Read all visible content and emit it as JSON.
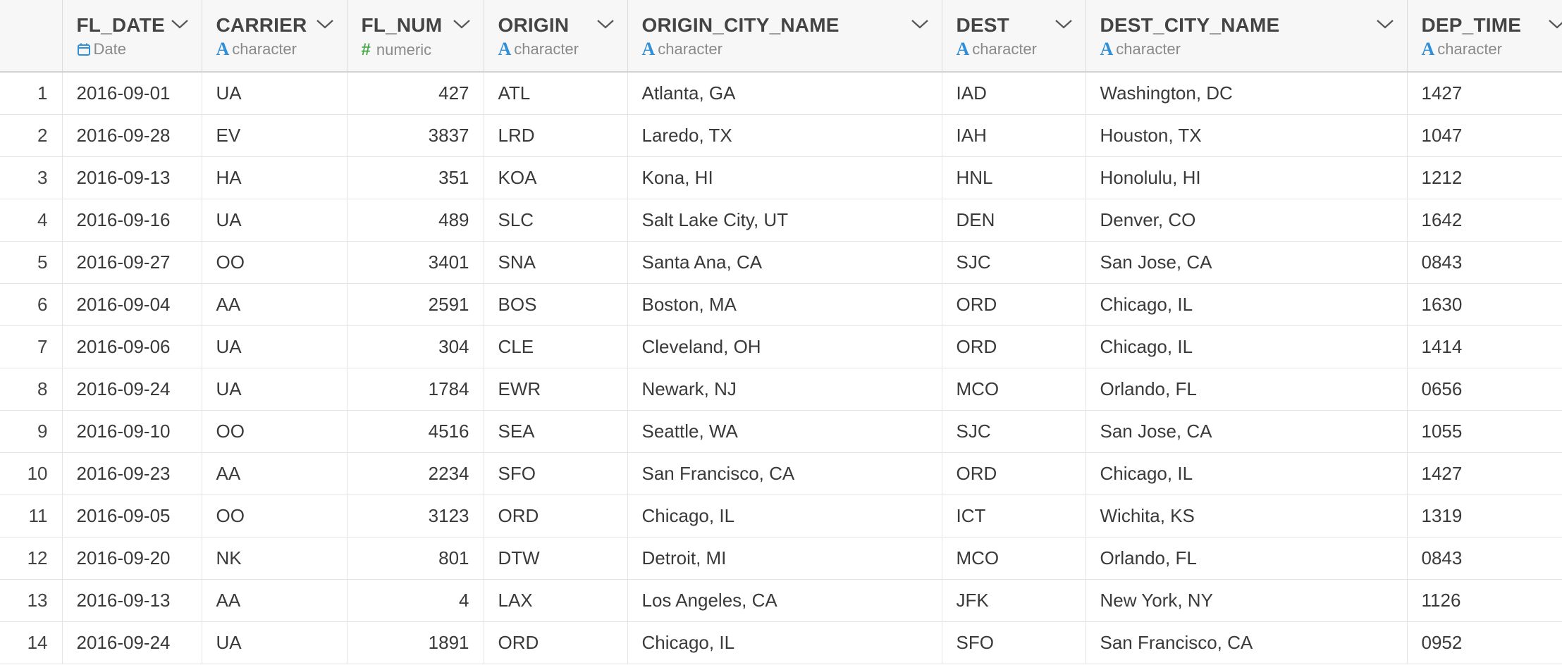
{
  "columns": [
    {
      "name": "FL_DATE",
      "type": "Date",
      "type_icon": "calendar-icon"
    },
    {
      "name": "CARRIER",
      "type": "character",
      "type_icon": "character-type-icon"
    },
    {
      "name": "FL_NUM",
      "type": "numeric",
      "type_icon": "numeric-type-icon"
    },
    {
      "name": "ORIGIN",
      "type": "character",
      "type_icon": "character-type-icon"
    },
    {
      "name": "ORIGIN_CITY_NAME",
      "type": "character",
      "type_icon": "character-type-icon"
    },
    {
      "name": "DEST",
      "type": "character",
      "type_icon": "character-type-icon"
    },
    {
      "name": "DEST_CITY_NAME",
      "type": "character",
      "type_icon": "character-type-icon"
    },
    {
      "name": "DEP_TIME",
      "type": "character",
      "type_icon": "character-type-icon"
    }
  ],
  "type_glyphs": {
    "character": "A",
    "numeric": "#"
  },
  "colors": {
    "character_icon": "#2f8fd8",
    "numeric_icon": "#4aa84a",
    "date_icon": "#2f8fd8"
  },
  "rows": [
    {
      "n": "1",
      "cells": [
        "2016-09-01",
        "UA",
        "427",
        "ATL",
        "Atlanta, GA",
        "IAD",
        "Washington, DC",
        "1427"
      ]
    },
    {
      "n": "2",
      "cells": [
        "2016-09-28",
        "EV",
        "3837",
        "LRD",
        "Laredo, TX",
        "IAH",
        "Houston, TX",
        "1047"
      ]
    },
    {
      "n": "3",
      "cells": [
        "2016-09-13",
        "HA",
        "351",
        "KOA",
        "Kona, HI",
        "HNL",
        "Honolulu, HI",
        "1212"
      ]
    },
    {
      "n": "4",
      "cells": [
        "2016-09-16",
        "UA",
        "489",
        "SLC",
        "Salt Lake City, UT",
        "DEN",
        "Denver, CO",
        "1642"
      ]
    },
    {
      "n": "5",
      "cells": [
        "2016-09-27",
        "OO",
        "3401",
        "SNA",
        "Santa Ana, CA",
        "SJC",
        "San Jose, CA",
        "0843"
      ]
    },
    {
      "n": "6",
      "cells": [
        "2016-09-04",
        "AA",
        "2591",
        "BOS",
        "Boston, MA",
        "ORD",
        "Chicago, IL",
        "1630"
      ]
    },
    {
      "n": "7",
      "cells": [
        "2016-09-06",
        "UA",
        "304",
        "CLE",
        "Cleveland, OH",
        "ORD",
        "Chicago, IL",
        "1414"
      ]
    },
    {
      "n": "8",
      "cells": [
        "2016-09-24",
        "UA",
        "1784",
        "EWR",
        "Newark, NJ",
        "MCO",
        "Orlando, FL",
        "0656"
      ]
    },
    {
      "n": "9",
      "cells": [
        "2016-09-10",
        "OO",
        "4516",
        "SEA",
        "Seattle, WA",
        "SJC",
        "San Jose, CA",
        "1055"
      ]
    },
    {
      "n": "10",
      "cells": [
        "2016-09-23",
        "AA",
        "2234",
        "SFO",
        "San Francisco, CA",
        "ORD",
        "Chicago, IL",
        "1427"
      ]
    },
    {
      "n": "11",
      "cells": [
        "2016-09-05",
        "OO",
        "3123",
        "ORD",
        "Chicago, IL",
        "ICT",
        "Wichita, KS",
        "1319"
      ]
    },
    {
      "n": "12",
      "cells": [
        "2016-09-20",
        "NK",
        "801",
        "DTW",
        "Detroit, MI",
        "MCO",
        "Orlando, FL",
        "0843"
      ]
    },
    {
      "n": "13",
      "cells": [
        "2016-09-13",
        "AA",
        "4",
        "LAX",
        "Los Angeles, CA",
        "JFK",
        "New York, NY",
        "1126"
      ]
    },
    {
      "n": "14",
      "cells": [
        "2016-09-24",
        "UA",
        "1891",
        "ORD",
        "Chicago, IL",
        "SFO",
        "San Francisco, CA",
        "0952"
      ]
    }
  ]
}
